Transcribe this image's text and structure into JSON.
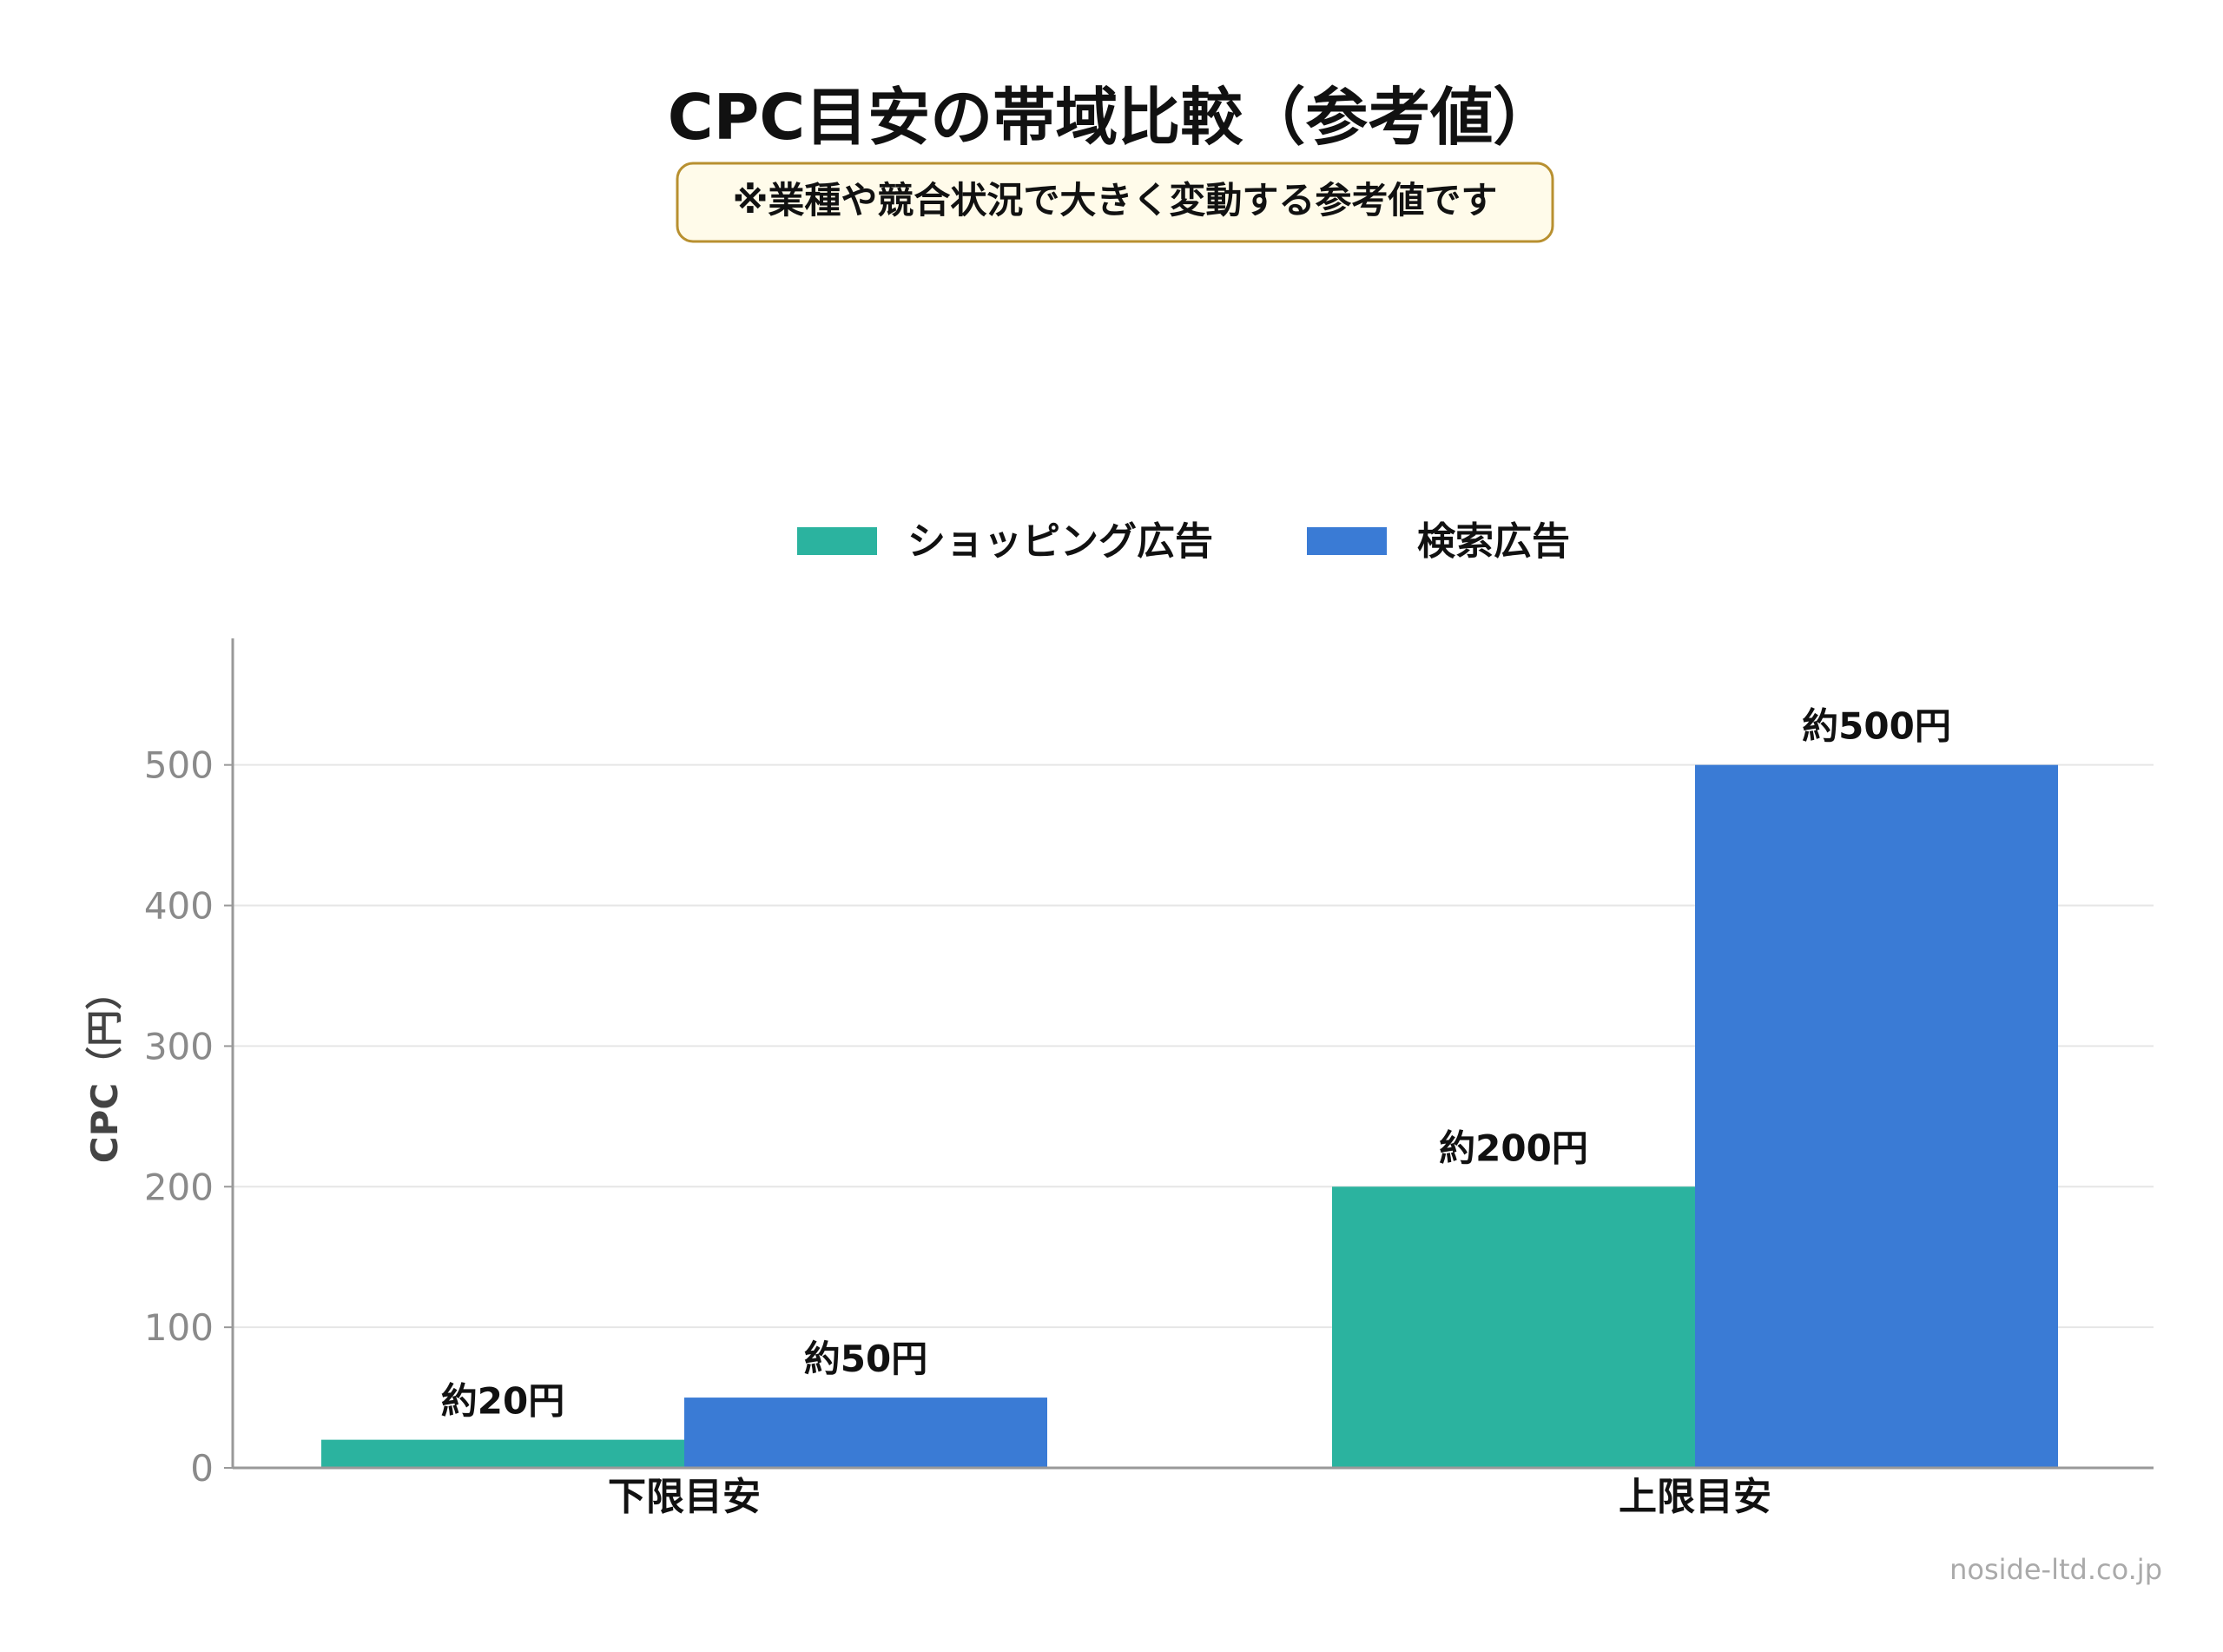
{
  "chart_data": {
    "type": "bar",
    "title": "CPC目安の帯域比較（参考値）",
    "subtitle": "※業種や競合状況で大きく変動する参考値です",
    "ylabel": "CPC（円）",
    "xlabel": "",
    "categories": [
      "下限目安",
      "上限目安"
    ],
    "series": [
      {
        "name": "ショッピング広告",
        "color": "#2bb39f",
        "values": [
          20,
          200
        ],
        "value_labels": [
          "約20円",
          "約200円"
        ]
      },
      {
        "name": "検索広告",
        "color": "#3a7bd5",
        "values": [
          50,
          500
        ],
        "value_labels": [
          "約50円",
          "約500円"
        ]
      }
    ],
    "ylim": [
      0,
      590
    ],
    "yticks": [
      0,
      100,
      200,
      300,
      400,
      500
    ],
    "grid": true,
    "legend_position": "top-center"
  },
  "colors": {
    "note_background": "#fffbea",
    "note_border": "#b89030",
    "axis": "#999999",
    "grid": "#e6e6e6",
    "tick_text": "#8a8a8a",
    "text": "#111111"
  },
  "watermark": "noside-ltd.co.jp"
}
